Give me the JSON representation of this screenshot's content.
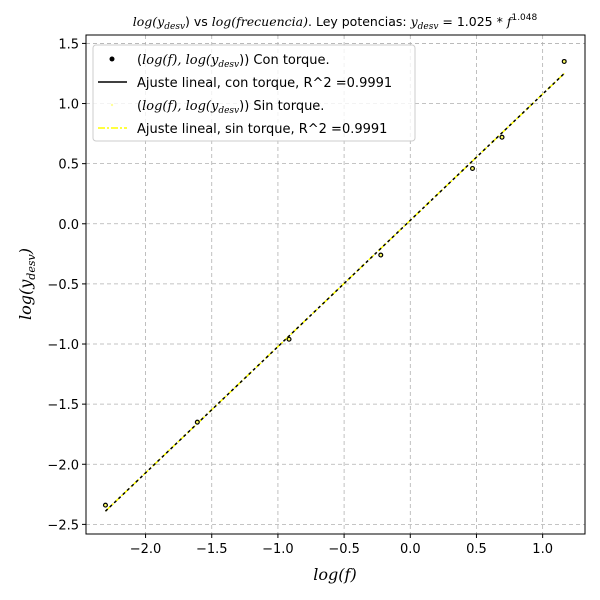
{
  "chart_data": {
    "type": "scatter",
    "title": "log(y_desv) vs log(frecuencia). Ley potencias: y_desv = 1.025 * f^1.048",
    "title_parts": {
      "p1": "log(y",
      "p1_sub": "desv",
      "p2": ") vs ",
      "p3": "log(frecuencia)",
      "p4": ". Ley potencias: ",
      "p5": "y",
      "p5_sub": "desv",
      "p6": " = 1.025 * ",
      "p7": "f",
      "p7_sup": "1.048"
    },
    "xlabel": "log(f)",
    "ylabel": "log(y_desv)",
    "ylabel_parts": {
      "main": "log(y",
      "sub": "desv",
      "end": ")"
    },
    "xlim": [
      -2.45,
      1.32
    ],
    "ylim": [
      -2.58,
      1.57
    ],
    "x_ticks": [
      -2.0,
      -1.5,
      -1.0,
      -0.5,
      0.0,
      0.5,
      1.0
    ],
    "x_tick_labels": [
      "−2.0",
      "−1.5",
      "−1.0",
      "−0.5",
      "0.0",
      "0.5",
      "1.0"
    ],
    "y_ticks": [
      -2.5,
      -2.0,
      -1.5,
      -1.0,
      -0.5,
      0.0,
      0.5,
      1.0,
      1.5
    ],
    "y_tick_labels": [
      "−2.5",
      "−2.0",
      "−1.5",
      "−1.0",
      "−0.5",
      "0.0",
      "0.5",
      "1.0",
      "1.5"
    ],
    "grid": true,
    "legend_position": "top-left",
    "series": [
      {
        "name": "(log(f), log(y_desv)) Con torque.",
        "kind": "points",
        "color": "#000000",
        "x": [
          -2.303,
          -1.609,
          -0.916,
          -0.223,
          0.47,
          0.693,
          1.163
        ],
        "y": [
          -2.34,
          -1.65,
          -0.96,
          -0.26,
          0.46,
          0.72,
          1.35
        ]
      },
      {
        "name": "Ajuste lineal, con torque, R^2 =0.9991",
        "kind": "line",
        "color": "#000000",
        "x": [
          -2.303,
          1.163
        ],
        "y": [
          -2.39,
          1.25
        ]
      },
      {
        "name": "(log(f), log(y_desv)) Sin torque.",
        "kind": "points",
        "color": "#ffff66",
        "x": [
          -2.303,
          -1.609,
          -0.916,
          -0.223,
          0.47,
          0.693,
          1.163
        ],
        "y": [
          -2.34,
          -1.65,
          -0.96,
          -0.26,
          0.46,
          0.72,
          1.35
        ]
      },
      {
        "name": "Ajuste lineal, sin torque, R^2 =0.9991",
        "kind": "line",
        "color": "#ffff00",
        "x": [
          -2.303,
          1.163
        ],
        "y": [
          -2.39,
          1.25
        ]
      }
    ],
    "legend": [
      {
        "pre": "(",
        "it": "log(f), log(y",
        "sub": "desv",
        "post": "))",
        "suffix": " Con torque."
      },
      {
        "label": "Ajuste lineal, con torque, R^2 =0.9991"
      },
      {
        "pre": "(",
        "it": "log(f), log(y",
        "sub": "desv",
        "post": "))",
        "suffix": " Sin torque."
      },
      {
        "label": "Ajuste lineal, sin torque, R^2 =0.9991"
      }
    ]
  }
}
